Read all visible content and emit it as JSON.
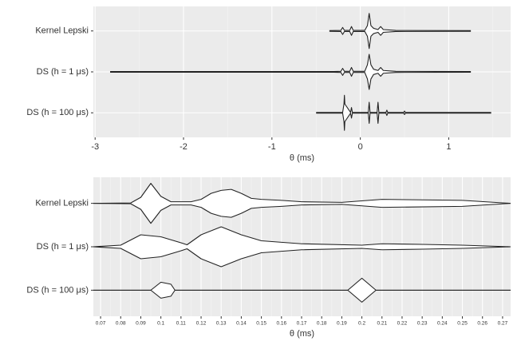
{
  "chart_data": [
    {
      "type": "violin",
      "categories": [
        "Kernel Lepski",
        "DS (h = 1 μs)",
        "DS (h = 100 μs)"
      ],
      "x_label": "θ (ms)",
      "xlim": [
        -3.02,
        1.7
      ],
      "xticks": [
        -3,
        -2,
        -1,
        0,
        1
      ],
      "minor_xticks": [
        -2.5,
        -1.5,
        -0.5,
        0.5,
        1.5
      ],
      "grid": true,
      "color": "#222222",
      "fill": "#ffffff",
      "background": "#ebebeb",
      "violins": [
        {
          "x": [
            -0.35,
            -0.22,
            -0.2,
            -0.18,
            -0.12,
            -0.1,
            -0.08,
            0.05,
            0.08,
            0.1,
            0.12,
            0.15,
            0.2,
            0.23,
            0.26,
            0.4,
            1.25
          ],
          "width": [
            0.02,
            0.03,
            0.2,
            0.03,
            0.03,
            0.25,
            0.03,
            0.03,
            0.3,
            1.0,
            0.3,
            0.15,
            0.08,
            0.25,
            0.08,
            0.03,
            0.02
          ]
        },
        {
          "x": [
            -2.83,
            -0.3,
            -0.22,
            -0.2,
            -0.18,
            -0.12,
            -0.1,
            -0.08,
            0.05,
            0.08,
            0.1,
            0.12,
            0.15,
            0.2,
            0.23,
            0.26,
            0.4,
            1.25
          ],
          "width": [
            0.02,
            0.02,
            0.03,
            0.2,
            0.03,
            0.03,
            0.25,
            0.03,
            0.03,
            0.4,
            1.0,
            0.4,
            0.15,
            0.08,
            0.25,
            0.08,
            0.03,
            0.02
          ]
        },
        {
          "x": [
            -0.5,
            -0.2,
            -0.185,
            -0.18,
            -0.175,
            -0.11,
            -0.1,
            -0.09,
            0.09,
            0.1,
            0.11,
            0.19,
            0.2,
            0.21,
            0.29,
            0.3,
            0.31,
            0.49,
            0.5,
            0.51,
            1.48
          ],
          "width": [
            0.02,
            0.02,
            0.5,
            1.0,
            0.5,
            0.02,
            0.3,
            0.02,
            0.02,
            0.6,
            0.02,
            0.02,
            0.6,
            0.02,
            0.02,
            0.15,
            0.02,
            0.02,
            0.1,
            0.02,
            0.02
          ]
        }
      ]
    },
    {
      "type": "violin",
      "categories": [
        "Kernel Lepski",
        "DS (h = 1 μs)",
        "DS (h = 100 μs)"
      ],
      "x_label": "θ (ms)",
      "xlim": [
        0.0664,
        0.274
      ],
      "xticks": [
        0.07,
        0.08,
        0.09,
        0.1,
        0.11,
        0.12,
        0.13,
        0.14,
        0.15,
        0.16,
        0.17,
        0.18,
        0.19,
        0.2,
        0.21,
        0.22,
        0.23,
        0.24,
        0.25,
        0.26,
        0.27
      ],
      "minor_xticks": [
        0.075,
        0.085,
        0.095,
        0.105,
        0.115,
        0.125,
        0.135,
        0.145,
        0.155,
        0.165,
        0.175,
        0.185,
        0.195,
        0.205,
        0.215,
        0.225,
        0.235,
        0.245,
        0.255,
        0.265
      ],
      "grid": true,
      "color": "#222222",
      "fill": "#ffffff",
      "background": "#ebebeb",
      "violins": [
        {
          "x": [
            0.0664,
            0.085,
            0.09,
            0.095,
            0.1,
            0.105,
            0.115,
            0.12,
            0.125,
            0.13,
            0.135,
            0.14,
            0.145,
            0.15,
            0.16,
            0.17,
            0.19,
            0.21,
            0.25,
            0.274
          ],
          "width": [
            0.0,
            0.02,
            0.3,
            1.0,
            0.35,
            0.08,
            0.08,
            0.2,
            0.5,
            0.65,
            0.7,
            0.5,
            0.25,
            0.2,
            0.15,
            0.08,
            0.05,
            0.2,
            0.15,
            0.0
          ]
        },
        {
          "x": [
            0.0664,
            0.08,
            0.09,
            0.1,
            0.11,
            0.113,
            0.12,
            0.13,
            0.14,
            0.15,
            0.17,
            0.2,
            0.21,
            0.23,
            0.25,
            0.274
          ],
          "width": [
            0.0,
            0.08,
            0.6,
            0.5,
            0.2,
            0.1,
            0.6,
            1.0,
            0.6,
            0.3,
            0.15,
            0.08,
            0.15,
            0.12,
            0.08,
            0.0
          ]
        },
        {
          "x": [
            0.0664,
            0.095,
            0.1,
            0.105,
            0.107,
            0.193,
            0.2,
            0.207,
            0.274
          ],
          "width": [
            0,
            0,
            0.4,
            0.3,
            0,
            0,
            0.6,
            0,
            0
          ]
        }
      ]
    }
  ]
}
